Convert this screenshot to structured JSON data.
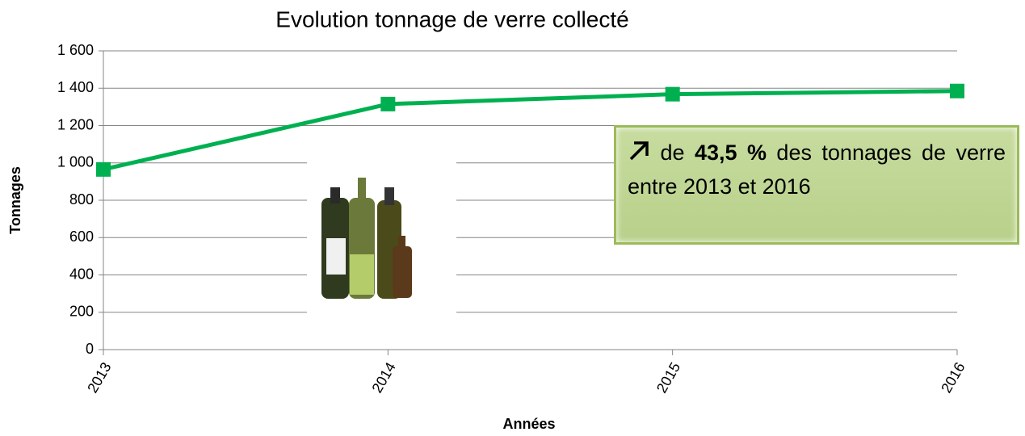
{
  "chart_data": {
    "type": "line",
    "title": "Evolution tonnage de verre collecté",
    "x_label": "Années",
    "y_label": "Tonnages",
    "categories": [
      "2013",
      "2014",
      "2015",
      "2016"
    ],
    "series": [
      {
        "name": "Tonnages",
        "color": "#00b050",
        "values": [
          965,
          1315,
          1368,
          1385
        ]
      }
    ],
    "ylim": [
      0,
      1600
    ],
    "yticks": [
      0,
      200,
      400,
      600,
      800,
      {
        "value": 1000,
        "label": "1 000"
      },
      {
        "value": 1200,
        "label": "1 200"
      },
      {
        "value": 1400,
        "label": "1 400"
      },
      {
        "value": 1600,
        "label": "1 600"
      }
    ],
    "grid": true,
    "annotation": {
      "before": "de",
      "bold": "43,5 %",
      "after": "des tonnages de verre entre 2013 et 2016"
    }
  }
}
